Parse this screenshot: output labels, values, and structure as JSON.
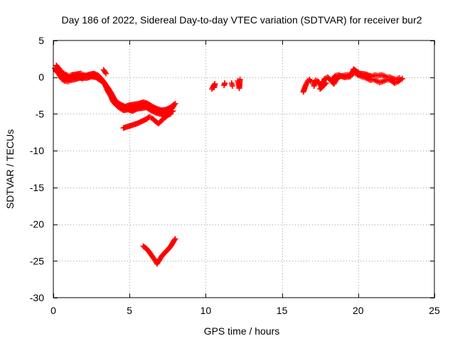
{
  "chart_data": {
    "type": "scatter",
    "title": "Day 186 of 2022, Sidereal Day-to-day VTEC variation (SDTVAR) for receiver bur2",
    "xlabel": "GPS time / hours",
    "ylabel": "SDTVAR / TECUs",
    "xlim": [
      0,
      25
    ],
    "ylim": [
      -30,
      5
    ],
    "xticks": [
      0,
      5,
      10,
      15,
      20,
      25
    ],
    "yticks": [
      -30,
      -25,
      -20,
      -15,
      -10,
      -5,
      0,
      5
    ],
    "xtick_labels": [
      "0",
      "5",
      "10",
      "15",
      "20",
      "25"
    ],
    "ytick_labels": [
      "-30",
      "-25",
      "-20",
      "-15",
      "-10",
      "-5",
      "0",
      "5"
    ],
    "grid": true,
    "marker": "+",
    "series_color": "#ff0000",
    "series": [
      {
        "name": "main-track",
        "segments": [
          [
            [
              0.1,
              1.2
            ],
            [
              0.3,
              0.8
            ],
            [
              0.5,
              0.3
            ],
            [
              0.7,
              0.0
            ],
            [
              0.9,
              -0.3
            ],
            [
              1.1,
              -0.1
            ],
            [
              1.3,
              0.0
            ],
            [
              1.6,
              0.2
            ],
            [
              1.9,
              -0.2
            ],
            [
              2.1,
              0.2
            ],
            [
              2.4,
              0.4
            ],
            [
              2.7,
              0.5
            ],
            [
              3.0,
              0.1
            ],
            [
              3.2,
              -0.4
            ],
            [
              3.4,
              -1.0
            ],
            [
              3.6,
              -1.5
            ],
            [
              3.8,
              -2.2
            ],
            [
              4.0,
              -3.0
            ],
            [
              4.2,
              -3.5
            ],
            [
              4.5,
              -3.9
            ],
            [
              4.8,
              -4.2
            ],
            [
              5.1,
              -4.1
            ],
            [
              5.4,
              -4.0
            ],
            [
              5.7,
              -3.8
            ],
            [
              6.0,
              -3.7
            ],
            [
              6.3,
              -4.0
            ],
            [
              6.6,
              -4.3
            ],
            [
              6.9,
              -4.6
            ],
            [
              7.2,
              -4.8
            ],
            [
              7.5,
              -4.6
            ],
            [
              7.8,
              -4.2
            ],
            [
              7.9,
              -3.9
            ]
          ],
          [
            [
              0.2,
              1.6
            ],
            [
              0.4,
              1.1
            ],
            [
              0.6,
              0.6
            ],
            [
              0.8,
              0.4
            ],
            [
              1.0,
              0.1
            ],
            [
              1.2,
              0.3
            ],
            [
              1.5,
              0.4
            ],
            [
              1.8,
              0.5
            ],
            [
              2.0,
              0.3
            ],
            [
              2.3,
              0.1
            ],
            [
              2.6,
              0.2
            ],
            [
              2.9,
              0.3
            ],
            [
              3.1,
              -0.1
            ],
            [
              3.3,
              -0.6
            ],
            [
              3.5,
              -1.2
            ],
            [
              3.7,
              -1.9
            ],
            [
              3.9,
              -2.6
            ],
            [
              4.1,
              -3.3
            ],
            [
              4.4,
              -3.7
            ],
            [
              4.7,
              -4.0
            ],
            [
              5.0,
              -3.8
            ],
            [
              5.3,
              -3.7
            ],
            [
              5.6,
              -3.6
            ],
            [
              5.9,
              -3.4
            ],
            [
              6.2,
              -3.6
            ],
            [
              6.5,
              -4.0
            ],
            [
              6.8,
              -4.3
            ],
            [
              7.1,
              -4.5
            ],
            [
              7.4,
              -4.4
            ],
            [
              7.7,
              -4.1
            ],
            [
              8.0,
              -3.6
            ]
          ],
          [
            [
              0.15,
              0.9
            ],
            [
              0.35,
              0.5
            ],
            [
              0.55,
              -0.2
            ],
            [
              0.75,
              -0.5
            ],
            [
              0.95,
              -0.6
            ],
            [
              1.15,
              -0.4
            ],
            [
              1.4,
              -0.3
            ],
            [
              1.7,
              -0.1
            ],
            [
              2.2,
              -0.1
            ],
            [
              2.5,
              0.1
            ],
            [
              2.8,
              0.0
            ],
            [
              3.35,
              -0.8
            ],
            [
              3.55,
              -1.8
            ],
            [
              3.75,
              -2.5
            ],
            [
              3.95,
              -3.4
            ],
            [
              4.3,
              -4.1
            ],
            [
              4.6,
              -4.5
            ],
            [
              4.9,
              -4.4
            ],
            [
              5.2,
              -4.6
            ],
            [
              5.5,
              -4.3
            ],
            [
              5.8,
              -4.2
            ],
            [
              6.1,
              -4.1
            ],
            [
              6.4,
              -4.5
            ],
            [
              6.7,
              -4.8
            ],
            [
              7.0,
              -5.0
            ],
            [
              7.3,
              -5.1
            ],
            [
              7.6,
              -4.9
            ],
            [
              7.85,
              -4.6
            ]
          ],
          [
            [
              3.3,
              1.0
            ],
            [
              3.45,
              0.5
            ]
          ]
        ]
      },
      {
        "name": "lower-track",
        "segments": [
          [
            [
              4.6,
              -6.9
            ],
            [
              4.9,
              -6.7
            ],
            [
              5.2,
              -6.5
            ],
            [
              5.5,
              -6.3
            ],
            [
              5.8,
              -6.0
            ],
            [
              6.1,
              -5.7
            ],
            [
              6.3,
              -5.4
            ],
            [
              6.5,
              -5.6
            ],
            [
              6.7,
              -6.0
            ],
            [
              6.9,
              -6.3
            ],
            [
              7.1,
              -5.9
            ],
            [
              7.3,
              -5.5
            ],
            [
              7.5,
              -5.2
            ],
            [
              7.7,
              -5.0
            ]
          ]
        ]
      },
      {
        "name": "deep-track",
        "segments": [
          [
            [
              5.9,
              -23.0
            ],
            [
              6.1,
              -23.3
            ],
            [
              6.3,
              -23.8
            ],
            [
              6.5,
              -24.4
            ],
            [
              6.7,
              -25.0
            ],
            [
              6.8,
              -25.4
            ],
            [
              6.95,
              -24.9
            ],
            [
              7.1,
              -24.4
            ],
            [
              7.3,
              -23.9
            ],
            [
              7.5,
              -23.5
            ],
            [
              7.7,
              -23.0
            ],
            [
              7.9,
              -22.3
            ],
            [
              8.0,
              -22.0
            ]
          ]
        ]
      },
      {
        "name": "mid-gap-points",
        "segments": [
          [
            [
              10.4,
              -1.6
            ],
            [
              10.5,
              -1.2
            ],
            [
              10.6,
              -0.9
            ],
            [
              10.55,
              -1.4
            ]
          ],
          [
            [
              11.2,
              -1.1
            ],
            [
              11.25,
              -0.8
            ]
          ],
          [
            [
              11.7,
              -0.8
            ],
            [
              11.75,
              -1.2
            ]
          ],
          [
            [
              12.1,
              -0.5
            ],
            [
              12.15,
              -0.9
            ],
            [
              12.2,
              -1.5
            ],
            [
              12.25,
              -0.3
            ]
          ]
        ]
      },
      {
        "name": "evening-track",
        "segments": [
          [
            [
              16.4,
              -2.0
            ],
            [
              16.5,
              -1.4
            ],
            [
              16.6,
              -0.9
            ],
            [
              16.7,
              -0.5
            ],
            [
              16.8,
              -0.3
            ],
            [
              16.9,
              -0.6
            ]
          ],
          [
            [
              17.1,
              -1.2
            ],
            [
              17.2,
              -0.4
            ],
            [
              17.4,
              -0.6
            ],
            [
              17.6,
              -1.4
            ],
            [
              17.8,
              -0.2
            ],
            [
              18.0,
              0.0
            ],
            [
              18.2,
              -0.4
            ],
            [
              18.4,
              -0.9
            ],
            [
              18.6,
              -0.2
            ],
            [
              18.8,
              0.1
            ],
            [
              19.0,
              0.2
            ],
            [
              19.2,
              0.3
            ],
            [
              19.4,
              0.3
            ],
            [
              19.6,
              0.5
            ],
            [
              19.8,
              0.6
            ],
            [
              20.0,
              0.3
            ],
            [
              20.2,
              0.1
            ],
            [
              20.4,
              0.0
            ],
            [
              20.6,
              -0.2
            ],
            [
              20.8,
              -0.4
            ],
            [
              21.0,
              -0.3
            ],
            [
              21.2,
              -0.5
            ],
            [
              21.4,
              -0.7
            ],
            [
              21.6,
              -0.6
            ],
            [
              21.8,
              -0.4
            ],
            [
              22.0,
              -0.3
            ],
            [
              22.2,
              -0.5
            ],
            [
              22.4,
              -0.8
            ],
            [
              22.6,
              -0.6
            ],
            [
              22.8,
              -0.3
            ],
            [
              22.9,
              -0.2
            ]
          ],
          [
            [
              18.3,
              -0.3
            ],
            [
              18.5,
              0.2
            ],
            [
              18.7,
              0.3
            ],
            [
              19.1,
              0.0
            ],
            [
              19.5,
              0.1
            ],
            [
              19.7,
              1.1
            ],
            [
              20.1,
              0.5
            ],
            [
              20.5,
              0.4
            ],
            [
              20.9,
              0.1
            ],
            [
              21.1,
              0.3
            ],
            [
              21.3,
              0.2
            ],
            [
              21.5,
              0.3
            ],
            [
              21.7,
              0.2
            ],
            [
              21.9,
              0.0
            ],
            [
              22.1,
              0.0
            ],
            [
              22.3,
              -0.2
            ],
            [
              22.5,
              -0.3
            ],
            [
              22.7,
              -0.1
            ]
          ],
          [
            [
              17.5,
              -1.6
            ],
            [
              17.7,
              -1.2
            ],
            [
              17.9,
              -0.8
            ]
          ]
        ]
      }
    ]
  }
}
